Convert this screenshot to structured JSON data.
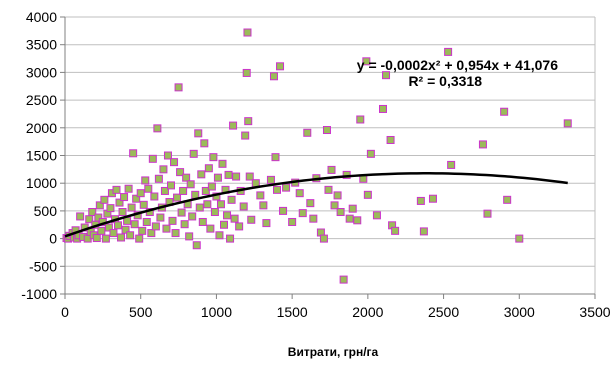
{
  "chart_data": {
    "type": "scatter",
    "title": "",
    "xlabel": "Витрати, грн/га",
    "ylabel": "",
    "xlim": [
      0,
      3500
    ],
    "ylim": [
      -1000,
      4000
    ],
    "x_ticks": [
      0,
      500,
      1000,
      1500,
      2000,
      2500,
      3000,
      3500
    ],
    "y_ticks": [
      -1000,
      -500,
      0,
      500,
      1000,
      1500,
      2000,
      2500,
      3000,
      3500,
      4000
    ],
    "x_tick_labels": [
      "0",
      "500",
      "1000",
      "1500",
      "2000",
      "2500",
      "3000",
      "3500"
    ],
    "y_tick_labels": [
      "-1000",
      "-500",
      "0",
      "500",
      "1000",
      "1500",
      "2000",
      "2500",
      "3000",
      "3500",
      "4000"
    ],
    "grid": "horizontal",
    "legend": "none",
    "colors": {
      "marker_fill": "#9bbb59",
      "marker_stroke": "#cc33cc",
      "trend": "#000000",
      "grid": "#bfbfbf",
      "axis": "#808080"
    },
    "annotations": {
      "equation": "y = -0,0002x² + 0,954x + 41,076",
      "r_squared": "R² = 0,3318"
    },
    "trendline": {
      "type": "polynomial",
      "order": 2,
      "coefficients": [
        -0.0002,
        0.954,
        41.076
      ],
      "x_range": [
        0,
        3320
      ]
    },
    "series": [
      {
        "points": [
          [
            10,
            10
          ],
          [
            20,
            0
          ],
          [
            30,
            50
          ],
          [
            50,
            100
          ],
          [
            60,
            20
          ],
          [
            70,
            150
          ],
          [
            80,
            0
          ],
          [
            90,
            60
          ],
          [
            100,
            400
          ],
          [
            120,
            30
          ],
          [
            130,
            200
          ],
          [
            150,
            0
          ],
          [
            160,
            350
          ],
          [
            170,
            120
          ],
          [
            180,
            480
          ],
          [
            190,
            60
          ],
          [
            200,
            250
          ],
          [
            210,
            10
          ],
          [
            220,
            380
          ],
          [
            230,
            600
          ],
          [
            240,
            140
          ],
          [
            250,
            300
          ],
          [
            260,
            700
          ],
          [
            270,
            0
          ],
          [
            280,
            450
          ],
          [
            290,
            200
          ],
          [
            300,
            550
          ],
          [
            310,
            820
          ],
          [
            320,
            100
          ],
          [
            330,
            350
          ],
          [
            340,
            880
          ],
          [
            350,
            240
          ],
          [
            360,
            650
          ],
          [
            370,
            20
          ],
          [
            380,
            480
          ],
          [
            390,
            750
          ],
          [
            400,
            160
          ],
          [
            410,
            320
          ],
          [
            420,
            900
          ],
          [
            430,
            60
          ],
          [
            440,
            560
          ],
          [
            450,
            1540
          ],
          [
            460,
            260
          ],
          [
            470,
            720
          ],
          [
            480,
            420
          ],
          [
            490,
            0
          ],
          [
            500,
            820
          ],
          [
            510,
            140
          ],
          [
            520,
            610
          ],
          [
            530,
            1050
          ],
          [
            540,
            300
          ],
          [
            550,
            900
          ],
          [
            560,
            480
          ],
          [
            570,
            100
          ],
          [
            580,
            1440
          ],
          [
            590,
            760
          ],
          [
            600,
            220
          ],
          [
            610,
            1990
          ],
          [
            620,
            1080
          ],
          [
            630,
            380
          ],
          [
            640,
            560
          ],
          [
            650,
            1250
          ],
          [
            660,
            860
          ],
          [
            670,
            180
          ],
          [
            680,
            1500
          ],
          [
            690,
            660
          ],
          [
            700,
            960
          ],
          [
            710,
            320
          ],
          [
            720,
            1380
          ],
          [
            730,
            100
          ],
          [
            740,
            740
          ],
          [
            750,
            2730
          ],
          [
            760,
            1200
          ],
          [
            770,
            470
          ],
          [
            780,
            860
          ],
          [
            790,
            260
          ],
          [
            800,
            1100
          ],
          [
            810,
            620
          ],
          [
            820,
            40
          ],
          [
            830,
            980
          ],
          [
            840,
            400
          ],
          [
            850,
            1530
          ],
          [
            860,
            790
          ],
          [
            870,
            -120
          ],
          [
            880,
            1900
          ],
          [
            890,
            560
          ],
          [
            900,
            1160
          ],
          [
            910,
            300
          ],
          [
            920,
            1720
          ],
          [
            930,
            860
          ],
          [
            940,
            620
          ],
          [
            950,
            1270
          ],
          [
            960,
            180
          ],
          [
            970,
            940
          ],
          [
            980,
            1470
          ],
          [
            990,
            480
          ],
          [
            1000,
            760
          ],
          [
            1010,
            1100
          ],
          [
            1020,
            60
          ],
          [
            1030,
            620
          ],
          [
            1040,
            1350
          ],
          [
            1050,
            250
          ],
          [
            1060,
            880
          ],
          [
            1070,
            420
          ],
          [
            1080,
            1150
          ],
          [
            1090,
            0
          ],
          [
            1100,
            700
          ],
          [
            1110,
            2040
          ],
          [
            1120,
            360
          ],
          [
            1130,
            1120
          ],
          [
            1150,
            220
          ],
          [
            1160,
            860
          ],
          [
            1180,
            580
          ],
          [
            1190,
            1860
          ],
          [
            1200,
            2990
          ],
          [
            1205,
            3720
          ],
          [
            1210,
            2120
          ],
          [
            1220,
            1120
          ],
          [
            1230,
            340
          ],
          [
            1260,
            1000
          ],
          [
            1290,
            780
          ],
          [
            1310,
            600
          ],
          [
            1330,
            280
          ],
          [
            1360,
            1060
          ],
          [
            1380,
            2930
          ],
          [
            1390,
            1470
          ],
          [
            1400,
            880
          ],
          [
            1420,
            3110
          ],
          [
            1440,
            500
          ],
          [
            1460,
            920
          ],
          [
            1500,
            300
          ],
          [
            1520,
            1010
          ],
          [
            1550,
            820
          ],
          [
            1570,
            460
          ],
          [
            1600,
            1910
          ],
          [
            1620,
            640
          ],
          [
            1640,
            360
          ],
          [
            1660,
            1090
          ],
          [
            1690,
            110
          ],
          [
            1710,
            0
          ],
          [
            1730,
            1960
          ],
          [
            1740,
            880
          ],
          [
            1760,
            1240
          ],
          [
            1780,
            600
          ],
          [
            1800,
            780
          ],
          [
            1820,
            480
          ],
          [
            1840,
            -740
          ],
          [
            1860,
            1150
          ],
          [
            1880,
            360
          ],
          [
            1900,
            540
          ],
          [
            1930,
            330
          ],
          [
            1950,
            2150
          ],
          [
            1970,
            1080
          ],
          [
            1990,
            3200
          ],
          [
            2000,
            790
          ],
          [
            2020,
            1530
          ],
          [
            2060,
            420
          ],
          [
            2100,
            2340
          ],
          [
            2120,
            2950
          ],
          [
            2150,
            1780
          ],
          [
            2160,
            240
          ],
          [
            2180,
            140
          ],
          [
            2350,
            680
          ],
          [
            2370,
            130
          ],
          [
            2430,
            720
          ],
          [
            2530,
            3370
          ],
          [
            2550,
            1330
          ],
          [
            2760,
            1700
          ],
          [
            2790,
            450
          ],
          [
            2900,
            2290
          ],
          [
            2920,
            700
          ],
          [
            3000,
            0
          ],
          [
            3320,
            2080
          ]
        ]
      }
    ]
  }
}
